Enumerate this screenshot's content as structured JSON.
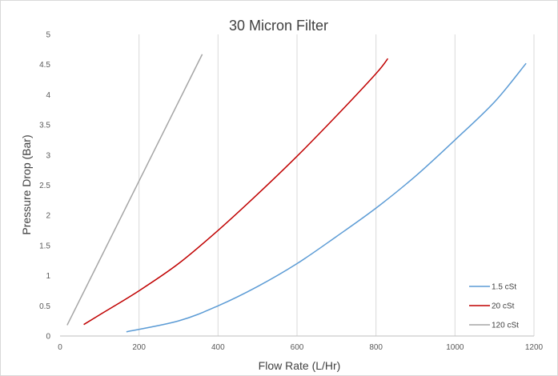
{
  "chart_data": {
    "type": "line",
    "title": "30 Micron Filter",
    "xlabel": "Flow Rate (L/Hr)",
    "ylabel": "Pressure Drop (Bar)",
    "xlim": [
      0,
      1200
    ],
    "ylim": [
      0,
      5
    ],
    "x_ticks": [
      "0",
      "200",
      "400",
      "600",
      "800",
      "1000",
      "1200"
    ],
    "y_ticks": [
      "0",
      "0.5",
      "1",
      "1.5",
      "2",
      "2.5",
      "3",
      "3.5",
      "4",
      "4.5",
      "5"
    ],
    "grid": "vertical",
    "legend_position": "bottom-right",
    "series": [
      {
        "name": "1.5 cSt",
        "color": "#5b9bd5",
        "points": [
          [
            168,
            0.07
          ],
          [
            300,
            0.25
          ],
          [
            400,
            0.5
          ],
          [
            500,
            0.82
          ],
          [
            600,
            1.2
          ],
          [
            700,
            1.65
          ],
          [
            800,
            2.12
          ],
          [
            900,
            2.65
          ],
          [
            1000,
            3.25
          ],
          [
            1100,
            3.88
          ],
          [
            1180,
            4.52
          ]
        ]
      },
      {
        "name": "20 cSt",
        "color": "#c00000",
        "points": [
          [
            60,
            0.19
          ],
          [
            100,
            0.35
          ],
          [
            200,
            0.75
          ],
          [
            300,
            1.2
          ],
          [
            400,
            1.75
          ],
          [
            500,
            2.35
          ],
          [
            600,
            2.98
          ],
          [
            700,
            3.65
          ],
          [
            800,
            4.35
          ],
          [
            830,
            4.6
          ]
        ]
      },
      {
        "name": "120 cSt",
        "color": "#a5a5a5",
        "points": [
          [
            18,
            0.18
          ],
          [
            360,
            4.67
          ]
        ]
      }
    ]
  }
}
